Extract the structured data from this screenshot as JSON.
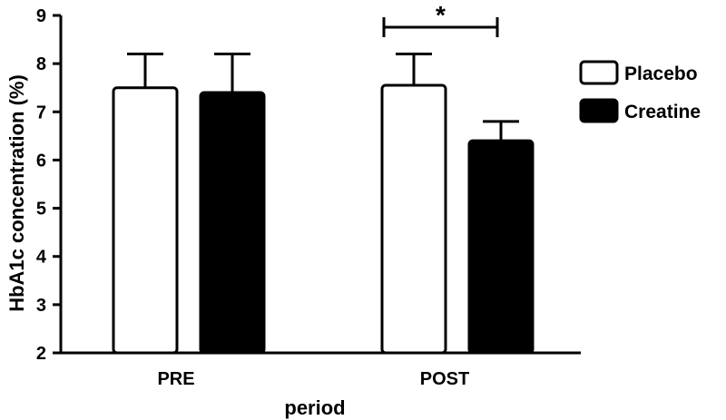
{
  "chart_data": {
    "type": "bar",
    "title": "",
    "xlabel": "period",
    "ylabel": "HbA1c concentration (%)",
    "ylim": [
      2,
      9
    ],
    "yticks": [
      2,
      3,
      4,
      5,
      6,
      7,
      8,
      9
    ],
    "categories": [
      "PRE",
      "POST"
    ],
    "series": [
      {
        "name": "Placebo",
        "values": [
          7.5,
          7.55
        ],
        "errors": [
          0.7,
          0.65
        ],
        "fill": "#ffffff"
      },
      {
        "name": "Creatine",
        "values": [
          7.4,
          6.4
        ],
        "errors": [
          0.8,
          0.4
        ],
        "fill": "#000000"
      }
    ],
    "legend_position": "right",
    "annotations": [
      {
        "text": "*",
        "category": "POST",
        "type": "significance-bracket"
      }
    ]
  }
}
